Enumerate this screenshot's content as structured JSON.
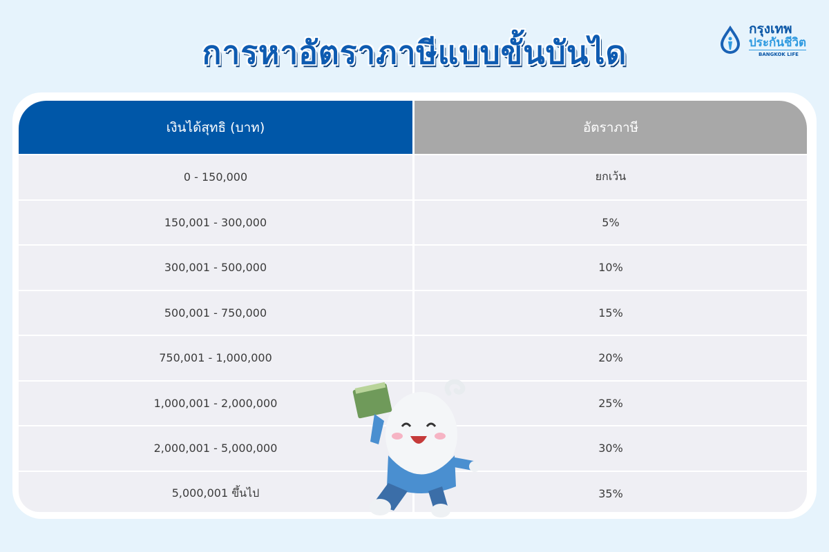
{
  "title": "การหาอัตราภาษีแบบขั้นบันได",
  "logo": {
    "thai_line1": "กรุงเทพ",
    "thai_line2": "ประกันชีวิต",
    "english": "BANGKOK LIFE"
  },
  "table": {
    "headers": [
      "เงินได้สุทธิ (บาท)",
      "อัตราภาษี"
    ],
    "rows": [
      {
        "income": "0 - 150,000",
        "rate": "ยกเว้น"
      },
      {
        "income": "150,001 - 300,000",
        "rate": "5%"
      },
      {
        "income": "300,001 - 500,000",
        "rate": "10%"
      },
      {
        "income": "500,001 - 750,000",
        "rate": "15%"
      },
      {
        "income": "750,001 - 1,000,000",
        "rate": "20%"
      },
      {
        "income": "1,000,001 - 2,000,000",
        "rate": "25%"
      },
      {
        "income": "2,000,001 - 5,000,000",
        "rate": "30%"
      },
      {
        "income": "5,000,001 ขึ้นไป",
        "rate": "35%"
      }
    ]
  },
  "colors": {
    "header_income": "#0057a8",
    "header_rate": "#a8a8a8",
    "title": "#0e5bb1",
    "row_bg": "#efeff4"
  }
}
